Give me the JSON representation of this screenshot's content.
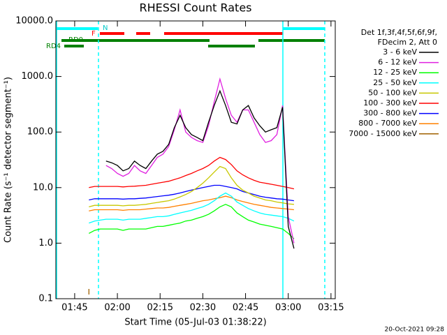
{
  "chart_data": {
    "type": "line",
    "title": "RHESSI Count Rates",
    "xlabel": "Start Time (05-Jul-03 01:38:22)",
    "ylabel": "Count Rate (s⁻¹ detector segment⁻¹)",
    "legend_header": [
      "Det 1f,3f,4f,5f,6f,9f,",
      "FDecim 2, Att 0"
    ],
    "flag_labels": [
      "N",
      "F",
      "RD0",
      "RD4"
    ],
    "footer": "20-Oct-2021 09:28",
    "log_y": true,
    "xlim": [
      98.4,
      196.5
    ],
    "xticks": [
      {
        "value": 105,
        "label": "01:45"
      },
      {
        "value": 120,
        "label": "02:00"
      },
      {
        "value": 135,
        "label": "02:15"
      },
      {
        "value": 150,
        "label": "02:30"
      },
      {
        "value": 165,
        "label": "02:45"
      },
      {
        "value": 180,
        "label": "03:00"
      },
      {
        "value": 195,
        "label": "03:15"
      }
    ],
    "ylim": [
      0.1,
      10000
    ],
    "yticks": [
      0.1,
      {
        "value": 1,
        "label": "1.0"
      },
      {
        "value": 10,
        "label": "10.0"
      },
      {
        "value": 100,
        "label": "100.0"
      },
      {
        "value": 1000,
        "label": "1000.0"
      },
      {
        "value": 10000,
        "label": "10000.0"
      }
    ],
    "x": [
      110,
      112,
      114,
      116,
      118,
      120,
      122,
      124,
      126,
      128,
      130,
      132,
      134,
      136,
      138,
      140,
      142,
      144,
      146,
      148,
      150,
      152,
      154,
      156,
      158,
      160,
      162,
      164,
      166,
      168,
      170,
      172,
      174,
      176,
      178,
      180,
      182
    ],
    "series": [
      {
        "name": "3 - 6 keV",
        "color": "#000000",
        "values": [
          null,
          null,
          null,
          30,
          28,
          25,
          20,
          22,
          30,
          25,
          22,
          30,
          40,
          45,
          60,
          120,
          200,
          120,
          90,
          80,
          70,
          150,
          300,
          550,
          300,
          150,
          140,
          250,
          300,
          180,
          130,
          100,
          110,
          120,
          280,
          2,
          0.8
        ]
      },
      {
        "name": "6 - 12 keV",
        "color": "#e020e0",
        "values": [
          null,
          null,
          null,
          25,
          22,
          18,
          16,
          18,
          25,
          20,
          18,
          25,
          35,
          40,
          55,
          110,
          250,
          100,
          80,
          70,
          65,
          130,
          350,
          900,
          400,
          200,
          150,
          250,
          250,
          150,
          90,
          65,
          70,
          90,
          300,
          3,
          1
        ]
      },
      {
        "name": "12 - 25 keV",
        "color": "#00ff00",
        "values": [
          1.5,
          1.7,
          1.8,
          1.8,
          1.8,
          1.8,
          1.7,
          1.8,
          1.8,
          1.8,
          1.8,
          1.9,
          2,
          2,
          2.1,
          2.2,
          2.3,
          2.5,
          2.6,
          2.8,
          3,
          3.3,
          3.8,
          4.5,
          5,
          4.5,
          3.5,
          3,
          2.6,
          2.4,
          2.2,
          2.1,
          2,
          1.9,
          1.8,
          1.5,
          1.2
        ]
      },
      {
        "name": "25 - 50 keV",
        "color": "#00ffff",
        "values": [
          2.3,
          2.5,
          2.6,
          2.7,
          2.7,
          2.7,
          2.6,
          2.7,
          2.7,
          2.7,
          2.8,
          2.9,
          3,
          3,
          3.1,
          3.3,
          3.5,
          3.7,
          3.9,
          4.2,
          4.5,
          5,
          5.8,
          7,
          8,
          7,
          5.5,
          4.8,
          4.2,
          3.8,
          3.5,
          3.3,
          3.2,
          3.1,
          3,
          2.8,
          2.5
        ]
      },
      {
        "name": "50 - 100 keV",
        "color": "#c8c800",
        "values": [
          4.5,
          4.8,
          4.8,
          4.8,
          4.8,
          4.8,
          4.7,
          4.8,
          4.8,
          4.9,
          5,
          5.2,
          5.4,
          5.6,
          5.8,
          6.2,
          6.8,
          7.5,
          8.5,
          10,
          12,
          15,
          19,
          24,
          22,
          15,
          11,
          9,
          8,
          7,
          6.5,
          6,
          5.8,
          5.5,
          5.3,
          5.1,
          5
        ]
      },
      {
        "name": "100 - 300 keV",
        "color": "#ff0000",
        "values": [
          10,
          10.5,
          10.5,
          10.5,
          10.5,
          10.5,
          10.3,
          10.5,
          10.6,
          10.8,
          11,
          11.5,
          12,
          12.5,
          13,
          14,
          15,
          16.5,
          18,
          20,
          22,
          25,
          30,
          35,
          32,
          26,
          20,
          17,
          15,
          13.5,
          12.5,
          12,
          11.5,
          11,
          10.5,
          10,
          9.5
        ]
      },
      {
        "name": "300 - 800 keV",
        "color": "#0000ff",
        "values": [
          6,
          6.3,
          6.3,
          6.3,
          6.3,
          6.3,
          6.2,
          6.3,
          6.3,
          6.4,
          6.5,
          6.7,
          6.9,
          7.1,
          7.3,
          7.6,
          8,
          8.5,
          9,
          9.5,
          10,
          10.5,
          11,
          11,
          10.5,
          10,
          9.5,
          8.5,
          8,
          7.5,
          7,
          6.7,
          6.5,
          6.3,
          6.2,
          6,
          5.8
        ]
      },
      {
        "name": "800 - 7000 keV",
        "color": "#ff8000",
        "values": [
          3.8,
          4,
          4,
          4,
          4,
          4,
          3.9,
          4,
          4,
          4,
          4.1,
          4.2,
          4.3,
          4.3,
          4.4,
          4.6,
          4.8,
          5,
          5.2,
          5.5,
          5.8,
          6,
          6.3,
          6.6,
          7,
          6.6,
          6,
          5.6,
          5.3,
          5,
          4.8,
          4.6,
          4.4,
          4.3,
          4.2,
          4.1,
          4
        ]
      },
      {
        "name": "7000 - 15000 keV",
        "color": "#a06000",
        "values": [
          0.15,
          null,
          null,
          null,
          null,
          null,
          null,
          null,
          null,
          null,
          null,
          null,
          null,
          null,
          null,
          null,
          null,
          null,
          null,
          null,
          null,
          null,
          null,
          null,
          null,
          null,
          null,
          null,
          null,
          null,
          null,
          null,
          null,
          null,
          null,
          null,
          null
        ]
      }
    ]
  }
}
